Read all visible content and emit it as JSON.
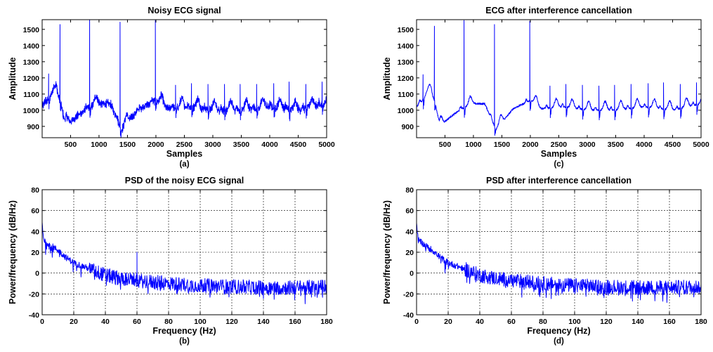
{
  "colors": {
    "trace": "#0000ff",
    "axis": "#000000",
    "background": "#ffffff"
  },
  "chart_data": [
    {
      "id": "a",
      "type": "line",
      "title": "Noisy ECG signal",
      "xlabel": "Samples",
      "ylabel": "Amplitude",
      "caption": "(a)",
      "xlim": [
        1,
        5000
      ],
      "ylim": [
        830,
        1560
      ],
      "xticks": [
        500,
        1000,
        1500,
        2000,
        2500,
        3000,
        3500,
        4000,
        4500,
        5000
      ],
      "yticks": [
        900,
        1000,
        1100,
        1200,
        1300,
        1400,
        1500
      ],
      "xtick_labels": [
        "500",
        "1000",
        "1500",
        "2000",
        "2500",
        "3000",
        "3500",
        "4000",
        "4500",
        "5000"
      ],
      "ytick_labels": [
        "900",
        "1000",
        "1100",
        "1200",
        "1300",
        "1400",
        "1500"
      ],
      "grid": false,
      "series": [
        {
          "noise": "powerline",
          "baseline": {
            "x": [
              1,
              100,
              180,
              260,
              330,
              400,
              600,
              800,
              1000,
              1200,
              1400,
              1700,
              2000,
              2200,
              2600,
              3000,
              3500,
              4000,
              4500,
              5000
            ],
            "y": [
              1020,
              1060,
              1100,
              1100,
              1050,
              900,
              960,
              1010,
              1040,
              1040,
              880,
              1010,
              1060,
              1010,
              1020,
              1000,
              1000,
              1020,
              1000,
              1040
            ]
          },
          "beats": [
            {
              "x": 115,
              "y": 1225
            },
            {
              "x": 315,
              "y": 1530
            },
            {
              "x": 835,
              "y": 1560
            },
            {
              "x": 1370,
              "y": 1545
            },
            {
              "x": 1990,
              "y": 1555
            },
            {
              "x": 2345,
              "y": 1155
            },
            {
              "x": 2625,
              "y": 1165
            },
            {
              "x": 2915,
              "y": 1160
            },
            {
              "x": 3205,
              "y": 1160
            },
            {
              "x": 3480,
              "y": 1160
            },
            {
              "x": 3770,
              "y": 1160
            },
            {
              "x": 4070,
              "y": 1165
            },
            {
              "x": 4340,
              "y": 1175
            },
            {
              "x": 4635,
              "y": 1160
            },
            {
              "x": 4920,
              "y": 1175
            }
          ]
        }
      ]
    },
    {
      "id": "c",
      "type": "line",
      "title": "ECG after interference cancellation",
      "xlabel": "Samples",
      "ylabel": "Amplitude",
      "caption": "(c)",
      "xlim": [
        1,
        5000
      ],
      "ylim": [
        830,
        1560
      ],
      "xticks": [
        500,
        1000,
        1500,
        2000,
        2500,
        3000,
        3500,
        4000,
        4500,
        5000
      ],
      "yticks": [
        900,
        1000,
        1100,
        1200,
        1300,
        1400,
        1500
      ],
      "xtick_labels": [
        "500",
        "1000",
        "1500",
        "2000",
        "2500",
        "3000",
        "3500",
        "4000",
        "4500",
        "5000"
      ],
      "ytick_labels": [
        "900",
        "1000",
        "1100",
        "1200",
        "1300",
        "1400",
        "1500"
      ],
      "grid": false,
      "series": [
        {
          "noise": "clean",
          "baseline": {
            "x": [
              1,
              100,
              180,
              260,
              330,
              400,
              600,
              800,
              1000,
              1200,
              1400,
              1700,
              2000,
              2200,
              2600,
              3000,
              3500,
              4000,
              4500,
              5000
            ],
            "y": [
              1020,
              1060,
              1100,
              1100,
              1050,
              900,
              960,
              1010,
              1040,
              1040,
              880,
              1010,
              1060,
              1010,
              1020,
              1000,
              1000,
              1020,
              1000,
              1040
            ]
          },
          "beats": [
            {
              "x": 115,
              "y": 1220
            },
            {
              "x": 315,
              "y": 1520
            },
            {
              "x": 835,
              "y": 1555
            },
            {
              "x": 1370,
              "y": 1530
            },
            {
              "x": 1990,
              "y": 1550
            },
            {
              "x": 2345,
              "y": 1150
            },
            {
              "x": 2625,
              "y": 1160
            },
            {
              "x": 2915,
              "y": 1155
            },
            {
              "x": 3205,
              "y": 1150
            },
            {
              "x": 3480,
              "y": 1155
            },
            {
              "x": 3770,
              "y": 1160
            },
            {
              "x": 4070,
              "y": 1165
            },
            {
              "x": 4340,
              "y": 1170
            },
            {
              "x": 4635,
              "y": 1160
            },
            {
              "x": 4920,
              "y": 1170
            }
          ]
        }
      ]
    },
    {
      "id": "b",
      "type": "line",
      "title": "PSD of the noisy ECG signal",
      "xlabel": "Frequency (Hz)",
      "ylabel": "Power/frequency (dB/Hz)",
      "caption": "(b)",
      "xlim": [
        0,
        180
      ],
      "ylim": [
        -40,
        80
      ],
      "xticks": [
        0,
        20,
        40,
        60,
        80,
        100,
        120,
        140,
        160,
        180
      ],
      "yticks": [
        -40,
        -20,
        0,
        20,
        40,
        60,
        80
      ],
      "xtick_labels": [
        "0",
        "20",
        "40",
        "60",
        "80",
        "100",
        "120",
        "140",
        "160",
        "180"
      ],
      "ytick_labels": [
        "-40",
        "-20",
        "0",
        "20",
        "40",
        "60",
        "80"
      ],
      "grid": true,
      "series": [
        {
          "envelope": {
            "x": [
              0,
              1,
              5,
              10,
              15,
              20,
              30,
              40,
              50,
              60,
              80,
              100,
              120,
              140,
              160,
              180
            ],
            "y": [
              48,
              32,
              27,
              22,
              15,
              10,
              4,
              -2,
              -5,
              -7,
              -10,
              -12,
              -13,
              -14,
              -14,
              -13
            ]
          },
          "peaks": [
            {
              "x": 60,
              "y": 20
            }
          ]
        }
      ]
    },
    {
      "id": "d",
      "type": "line",
      "title": "PSD after interference cancellation",
      "xlabel": "Frequency (Hz)",
      "ylabel": "Power/frequency (dB/Hz)",
      "caption": "(d)",
      "xlim": [
        0,
        180
      ],
      "ylim": [
        -40,
        80
      ],
      "xticks": [
        0,
        20,
        40,
        60,
        80,
        100,
        120,
        140,
        160,
        180
      ],
      "yticks": [
        -40,
        -20,
        0,
        20,
        40,
        60,
        80
      ],
      "xtick_labels": [
        "0",
        "20",
        "40",
        "60",
        "80",
        "100",
        "120",
        "140",
        "160",
        "180"
      ],
      "ytick_labels": [
        "-40",
        "-20",
        "0",
        "20",
        "40",
        "60",
        "80"
      ],
      "grid": true,
      "series": [
        {
          "envelope": {
            "x": [
              0,
              1,
              5,
              10,
              15,
              20,
              30,
              40,
              50,
              60,
              80,
              100,
              120,
              140,
              160,
              180
            ],
            "y": [
              48,
              32,
              27,
              22,
              15,
              10,
              4,
              -2,
              -5,
              -7,
              -10,
              -12,
              -13,
              -14,
              -14,
              -13
            ]
          },
          "peaks": []
        }
      ]
    }
  ]
}
